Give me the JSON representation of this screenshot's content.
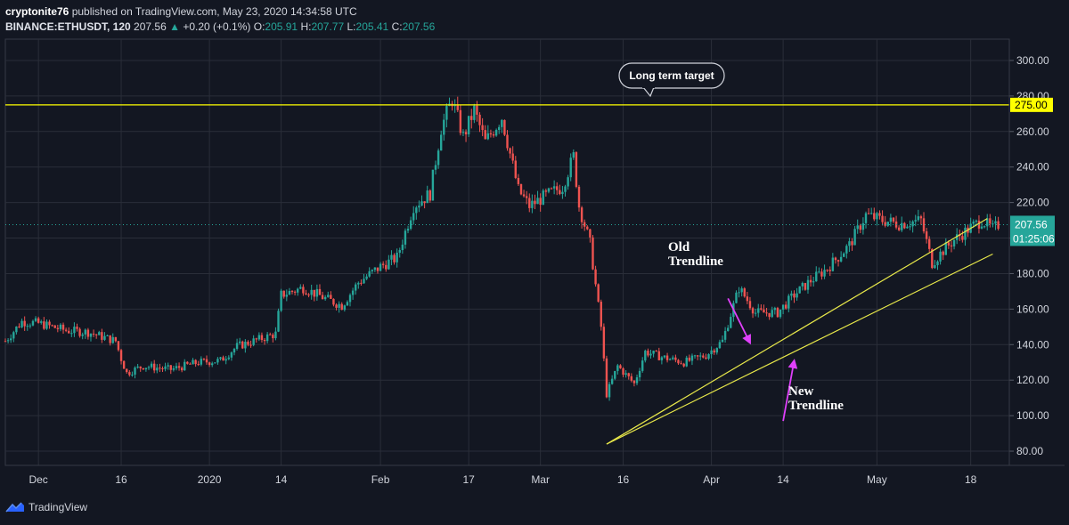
{
  "header": {
    "publisher": "cryptonite76",
    "published_text": "published on TradingView.com, May 23, 2020 14:34:58 UTC",
    "symbol": "BINANCE:ETHUSDT, 120",
    "last": "207.56",
    "change": "+0.20 (+0.1%)",
    "open_label": "O:",
    "open": "205.91",
    "high_label": "H:",
    "high": "207.77",
    "low_label": "L:",
    "low": "205.41",
    "close_label": "C:",
    "close": "207.56"
  },
  "footer": {
    "brand": "TradingView"
  },
  "colors": {
    "background": "#131722",
    "grid": "#2a2e39",
    "up": "#26a69a",
    "down": "#ef5350",
    "target_line": "#ffff00",
    "trendline": "#e8e84a",
    "arrow": "#e040fb",
    "price_tag": "#26a69a"
  },
  "chart_data": {
    "type": "candlestick",
    "series": [
      {
        "name": "BINANCE:ETHUSDT",
        "interval": "120"
      }
    ],
    "y_axis": {
      "range": [
        72,
        312
      ],
      "ticks": [
        "300.00",
        "280.00",
        "260.00",
        "240.00",
        "220.00",
        "200.00",
        "180.00",
        "160.00",
        "140.00",
        "120.00",
        "100.00",
        "80.00"
      ],
      "tick_values": [
        300,
        280,
        260,
        240,
        220,
        200,
        180,
        160,
        140,
        120,
        100,
        80
      ]
    },
    "x_axis": {
      "range": [
        "2019-11-25",
        "2020-05-25"
      ],
      "ticks": [
        {
          "label": "Dec",
          "date": "2019-12-01"
        },
        {
          "label": "16",
          "date": "2019-12-16"
        },
        {
          "label": "2020",
          "date": "2020-01-01"
        },
        {
          "label": "14",
          "date": "2020-01-14"
        },
        {
          "label": "Feb",
          "date": "2020-02-01"
        },
        {
          "label": "17",
          "date": "2020-02-17"
        },
        {
          "label": "Mar",
          "date": "2020-03-01"
        },
        {
          "label": "16",
          "date": "2020-03-16"
        },
        {
          "label": "Apr",
          "date": "2020-04-01"
        },
        {
          "label": "14",
          "date": "2020-04-14"
        },
        {
          "label": "May",
          "date": "2020-05-01"
        },
        {
          "label": "18",
          "date": "2020-05-18"
        }
      ]
    },
    "price_path": [
      [
        "2019-11-25",
        142
      ],
      [
        "2019-11-28",
        153
      ],
      [
        "2019-12-01",
        152
      ],
      [
        "2019-12-06",
        148
      ],
      [
        "2019-12-10",
        147
      ],
      [
        "2019-12-15",
        142
      ],
      [
        "2019-12-16",
        132
      ],
      [
        "2019-12-17",
        124
      ],
      [
        "2019-12-20",
        128
      ],
      [
        "2019-12-25",
        126
      ],
      [
        "2019-12-30",
        130
      ],
      [
        "2020-01-03",
        131
      ],
      [
        "2020-01-06",
        139
      ],
      [
        "2020-01-10",
        143
      ],
      [
        "2020-01-13",
        146
      ],
      [
        "2020-01-14",
        168
      ],
      [
        "2020-01-18",
        172
      ],
      [
        "2020-01-22",
        166
      ],
      [
        "2020-01-25",
        162
      ],
      [
        "2020-01-28",
        175
      ],
      [
        "2020-02-01",
        184
      ],
      [
        "2020-02-04",
        189
      ],
      [
        "2020-02-07",
        218
      ],
      [
        "2020-02-10",
        225
      ],
      [
        "2020-02-12",
        262
      ],
      [
        "2020-02-14",
        278
      ],
      [
        "2020-02-16",
        257
      ],
      [
        "2020-02-18",
        272
      ],
      [
        "2020-02-20",
        254
      ],
      [
        "2020-02-23",
        268
      ],
      [
        "2020-02-26",
        227
      ],
      [
        "2020-02-28",
        218
      ],
      [
        "2020-03-01",
        222
      ],
      [
        "2020-03-05",
        229
      ],
      [
        "2020-03-07",
        246
      ],
      [
        "2020-03-08",
        218
      ],
      [
        "2020-03-10",
        197
      ],
      [
        "2020-03-12",
        150
      ],
      [
        "2020-03-13",
        112
      ],
      [
        "2020-03-15",
        128
      ],
      [
        "2020-03-18",
        118
      ],
      [
        "2020-03-20",
        136
      ],
      [
        "2020-03-23",
        133
      ],
      [
        "2020-03-27",
        130
      ],
      [
        "2020-03-31",
        134
      ],
      [
        "2020-04-03",
        142
      ],
      [
        "2020-04-06",
        172
      ],
      [
        "2020-04-09",
        158
      ],
      [
        "2020-04-13",
        158
      ],
      [
        "2020-04-16",
        168
      ],
      [
        "2020-04-19",
        176
      ],
      [
        "2020-04-22",
        183
      ],
      [
        "2020-04-26",
        196
      ],
      [
        "2020-04-29",
        213
      ],
      [
        "2020-05-02",
        210
      ],
      [
        "2020-05-05",
        208
      ],
      [
        "2020-05-09",
        210
      ],
      [
        "2020-05-11",
        186
      ],
      [
        "2020-05-13",
        193
      ],
      [
        "2020-05-15",
        199
      ],
      [
        "2020-05-18",
        206
      ],
      [
        "2020-05-20",
        210
      ],
      [
        "2020-05-22",
        205
      ],
      [
        "2020-05-23",
        207.56
      ]
    ],
    "horizontal_lines": [
      {
        "price": 275,
        "label": "275.00"
      }
    ],
    "last_price": {
      "label": "207.56",
      "countdown": "01:25:06"
    },
    "annotations": {
      "callout": "Long term target",
      "old_trendline": [
        "Old",
        "Trendline"
      ],
      "new_trendline": [
        "New",
        "Trendline"
      ]
    },
    "trendlines": [
      {
        "name": "old",
        "from": [
          "2020-03-13",
          84
        ],
        "to": [
          "2020-05-21",
          211
        ]
      },
      {
        "name": "new",
        "from": [
          "2020-03-13",
          84
        ],
        "to": [
          "2020-05-22",
          191
        ]
      }
    ],
    "arrows": [
      {
        "name": "old-trendline-arrow",
        "from": [
          "2020-04-04",
          166
        ],
        "to": [
          "2020-04-08",
          141
        ]
      },
      {
        "name": "new-trendline-arrow",
        "from": [
          "2020-04-14",
          97
        ],
        "to": [
          "2020-04-16",
          131
        ]
      }
    ],
    "grid": true,
    "legend": "none"
  }
}
